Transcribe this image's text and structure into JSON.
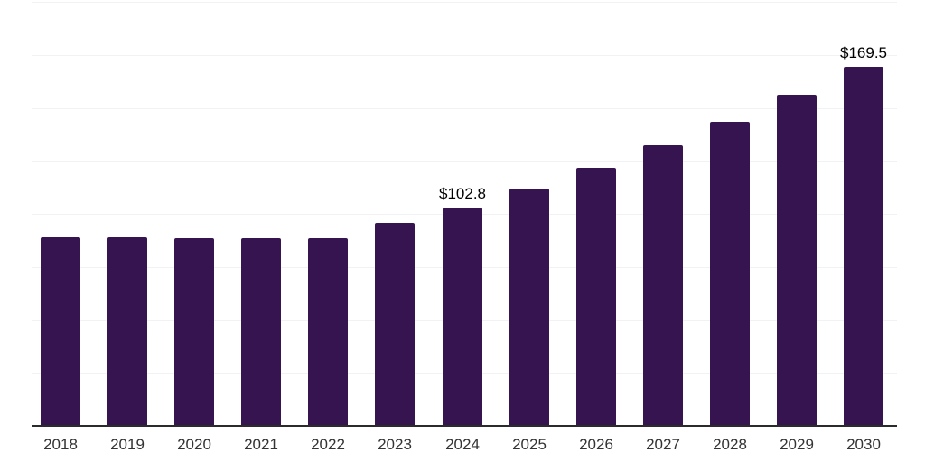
{
  "chart_data": {
    "type": "bar",
    "title": "",
    "xlabel": "",
    "ylabel": "",
    "categories": [
      "2018",
      "2019",
      "2020",
      "2021",
      "2022",
      "2023",
      "2024",
      "2025",
      "2026",
      "2027",
      "2028",
      "2029",
      "2030"
    ],
    "values": [
      88.9,
      88.8,
      88.7,
      88.5,
      88.3,
      95.6,
      102.8,
      111.9,
      121.7,
      132.2,
      143.6,
      156.1,
      169.5
    ],
    "annotations": [
      {
        "category": "2024",
        "text": "$102.8"
      },
      {
        "category": "2030",
        "text": "$169.5"
      }
    ],
    "ylim": [
      0,
      200
    ],
    "grid_step": 25,
    "grid": "horizontal-only",
    "legend": "none",
    "y_axis_labels_visible": false,
    "colors": {
      "bar": "#361450",
      "gridline": "#f2f2f4",
      "axis_line": "#2b2b2b",
      "tick_label": "#333333",
      "value_label": "#000000",
      "background": "#ffffff"
    }
  }
}
